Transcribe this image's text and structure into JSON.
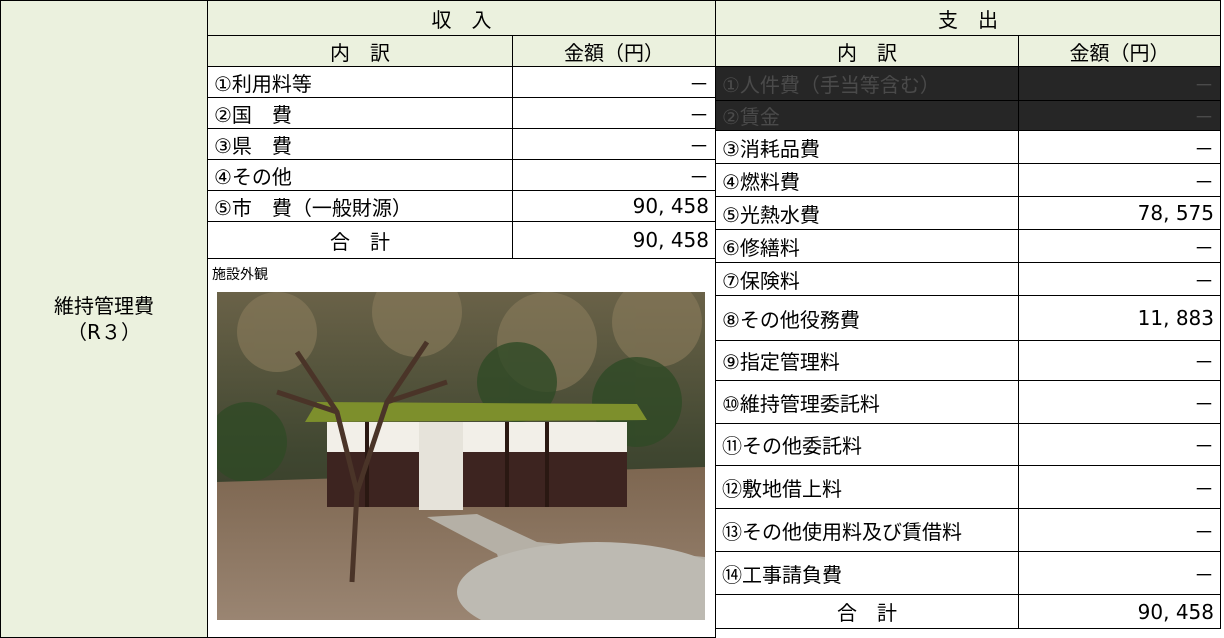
{
  "side_label": [
    "維持管理費",
    "（R３）"
  ],
  "income": {
    "heading": "収　入",
    "columns": [
      "内　訳",
      "金額（円）"
    ],
    "rows": [
      [
        "①利用料等",
        "－"
      ],
      [
        "②国　費",
        "－"
      ],
      [
        "③県　費",
        "－"
      ],
      [
        "④その他",
        "－"
      ],
      [
        "⑤市　費（一般財源）",
        "90, 458"
      ]
    ],
    "total": [
      "合　計",
      "90, 458"
    ]
  },
  "photo_caption": "施設外観",
  "expenditure": {
    "heading": "支　出",
    "columns": [
      "内　訳",
      "金額（円）"
    ],
    "rows": [
      [
        "①人件費（手当等含む）",
        "－"
      ],
      [
        "②賃金",
        "－"
      ],
      [
        "③消耗品費",
        "－"
      ],
      [
        "④燃料費",
        "－"
      ],
      [
        "⑤光熱水費",
        "78, 575"
      ],
      [
        "⑥修繕料",
        "－"
      ],
      [
        "⑦保険料",
        "－"
      ],
      [
        "⑧その他役務費",
        "11, 883"
      ],
      [
        "⑨指定管理料",
        "－"
      ],
      [
        "⑩維持管理委託料",
        "－"
      ],
      [
        "⑪その他委託料",
        "－"
      ],
      [
        "⑫敷地借上料",
        "－"
      ],
      [
        "⑬その他使用料及び賃借料",
        "－"
      ],
      [
        "⑭工事請負費",
        "－"
      ]
    ],
    "total": [
      "合　計",
      "90, 458"
    ]
  }
}
